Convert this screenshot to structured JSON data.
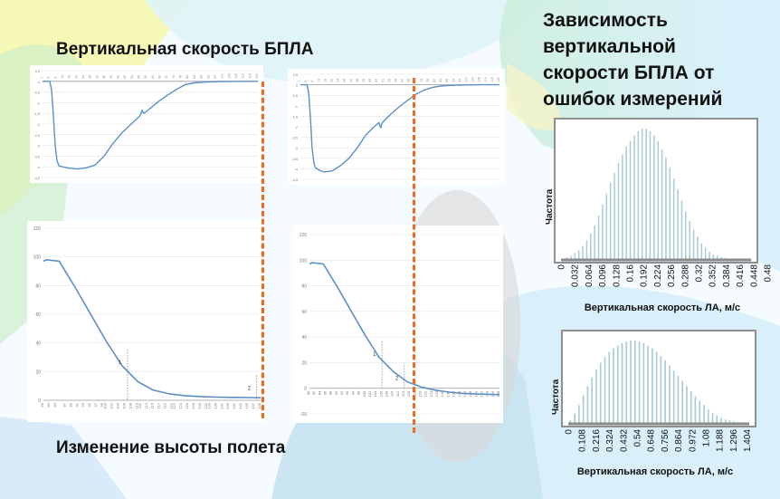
{
  "headings": {
    "speed": "Вертикальная скорость БПЛА",
    "altitude": "Изменение высоты полета",
    "dependency": [
      "Зависимость",
      "вертикальной",
      "скорости БПЛА от",
      "ошибок измерений"
    ]
  },
  "colors": {
    "series": "#5b8fc7",
    "marker_line": "#f26a1b",
    "histogram": "#a8cdd3",
    "hist_axis": "#8a8a8a"
  },
  "chart_data": [
    {
      "type": "line",
      "name": "speed-left",
      "ylim": [
        -4.5,
        0.5
      ],
      "yticks": [
        "0,5",
        "0",
        "-0,5",
        "-1",
        "-1,5",
        "-2",
        "-2,5",
        "-3",
        "-3,5",
        "-4",
        "-4,5"
      ],
      "x_range": [
        1,
        120
      ],
      "x": [
        1,
        5,
        6,
        7,
        8,
        9,
        10,
        12,
        15,
        20,
        25,
        30,
        35,
        40,
        45,
        50,
        55,
        56,
        57,
        60,
        65,
        70,
        75,
        80,
        85,
        90,
        95,
        100,
        110,
        120
      ],
      "y": [
        0,
        0,
        -0.4,
        -1.6,
        -3.0,
        -3.7,
        -3.95,
        -4.0,
        -4.05,
        -4.1,
        -4.05,
        -3.92,
        -3.5,
        -2.9,
        -2.4,
        -2.0,
        -1.6,
        -1.35,
        -1.5,
        -1.3,
        -0.95,
        -0.65,
        -0.38,
        -0.15,
        -0.07,
        -0.04,
        -0.02,
        -0.01,
        0,
        0
      ]
    },
    {
      "type": "line",
      "name": "speed-right",
      "ylim": [
        -4.5,
        0.5
      ],
      "yticks": [
        "0,5",
        "0",
        "-0,5",
        "-1",
        "-1,5",
        "-2",
        "-2,5",
        "-3",
        "-3,5",
        "-4",
        "-4,5"
      ],
      "x_range": [
        1,
        120
      ],
      "x": [
        1,
        5,
        6,
        7,
        8,
        9,
        10,
        12,
        15,
        20,
        25,
        30,
        35,
        40,
        45,
        48,
        49,
        50,
        55,
        60,
        65,
        70,
        75,
        80,
        85,
        90,
        100,
        110,
        120
      ],
      "y": [
        0,
        0,
        -0.4,
        -1.6,
        -3.0,
        -3.7,
        -3.95,
        -4.05,
        -4.15,
        -4.1,
        -3.85,
        -3.5,
        -3.0,
        -2.4,
        -2.0,
        -1.8,
        -2.05,
        -1.8,
        -1.4,
        -1.05,
        -0.75,
        -0.45,
        -0.25,
        -0.12,
        -0.06,
        -0.03,
        -0.01,
        0,
        0
      ]
    },
    {
      "type": "line",
      "name": "altitude-left",
      "ylim": [
        0,
        120
      ],
      "yticks": [
        "120",
        "100",
        "80",
        "60",
        "40",
        "20",
        "0"
      ],
      "x_range": [
        80,
        149
      ],
      "x": [
        80,
        81,
        85,
        90,
        95,
        100,
        105,
        110,
        115,
        120,
        125,
        130,
        135,
        140,
        145,
        149
      ],
      "y": [
        97,
        98,
        97,
        79,
        60,
        41,
        24,
        13,
        7,
        4.5,
        3.2,
        2.6,
        2.2,
        2.0,
        1.9,
        1.8
      ],
      "point_labels": [
        {
          "x": 105,
          "y": 24,
          "label": "1"
        },
        {
          "x": 146,
          "y": 6,
          "label": "2"
        }
      ],
      "x_ticks": [
        "80",
        "82",
        "84",
        "87",
        "89",
        "91",
        "93",
        "95",
        "97",
        "99",
        "100",
        "102",
        "104",
        "106",
        "108",
        "110",
        "111",
        "113",
        "115",
        "117",
        "119",
        "121",
        "122",
        "124",
        "126",
        "128",
        "130",
        "132",
        "133",
        "135",
        "137",
        "139",
        "141",
        "143",
        "145",
        "147",
        "149"
      ]
    },
    {
      "type": "line",
      "name": "altitude-right",
      "ylim": [
        -20,
        120
      ],
      "yticks": [
        "120",
        "100",
        "80",
        "60",
        "40",
        "20",
        "0",
        "-20"
      ],
      "x_range": [
        80,
        148
      ],
      "x": [
        80,
        81,
        85,
        90,
        95,
        100,
        105,
        110,
        115,
        120,
        125,
        130,
        135,
        140,
        148
      ],
      "y": [
        97,
        98,
        97,
        79,
        60,
        41,
        24,
        13,
        5,
        1,
        -1.5,
        -3,
        -4,
        -4.5,
        -5
      ],
      "point_labels": [
        {
          "x": 104,
          "y": 24,
          "label": "1"
        },
        {
          "x": 112,
          "y": 5,
          "label": "2"
        }
      ],
      "x_ticks": [
        "80",
        "82",
        "84",
        "86",
        "88",
        "90",
        "92",
        "94",
        "96",
        "98",
        "100",
        "102",
        "104",
        "106",
        "108",
        "110",
        "112",
        "114",
        "116",
        "118",
        "120",
        "122",
        "124",
        "126",
        "128",
        "130",
        "132",
        "134",
        "136",
        "138",
        "140",
        "142",
        "144",
        "146",
        "148"
      ]
    },
    {
      "type": "bar",
      "name": "hist-top",
      "xlabel": "Вертикальная скорость ЛА, м/с",
      "ylabel": "Частота",
      "x_ticks": [
        "0",
        "0.032",
        "0.064",
        "0.096",
        "0.128",
        "0.16",
        "0.192",
        "0.224",
        "0.256",
        "0.288",
        "0.32",
        "0.352",
        "0.384",
        "0.416",
        "0.448",
        "0.48"
      ],
      "values": [
        1,
        2,
        3,
        5,
        7,
        10,
        14,
        19,
        25,
        32,
        40,
        48,
        56,
        63,
        70,
        76,
        82,
        86,
        90,
        93,
        95,
        95,
        93,
        90,
        86,
        80,
        74,
        67,
        59,
        51,
        43,
        35,
        28,
        22,
        17,
        12,
        9,
        6,
        4,
        3,
        2,
        1.5,
        1,
        0.8,
        0.6,
        0.4,
        0.3,
        0.2
      ]
    },
    {
      "type": "bar",
      "name": "hist-bottom",
      "xlabel": "Вертикальная скорость ЛА, м/с",
      "ylabel": "Частота",
      "x_ticks": [
        "0",
        "0.108",
        "0.216",
        "0.324",
        "0.432",
        "0.54",
        "0.648",
        "0.756",
        "0.864",
        "0.972",
        "1.08",
        "1.188",
        "1.296",
        "1.404"
      ],
      "values": [
        4,
        12,
        22,
        33,
        44,
        54,
        63,
        71,
        78,
        84,
        88,
        91,
        94,
        96,
        97,
        97,
        96,
        94,
        91,
        88,
        84,
        79,
        74,
        68,
        62,
        56,
        50,
        44,
        38,
        32,
        27,
        22,
        17,
        13,
        10,
        7,
        5,
        4,
        3,
        2,
        1.5,
        1
      ]
    }
  ]
}
